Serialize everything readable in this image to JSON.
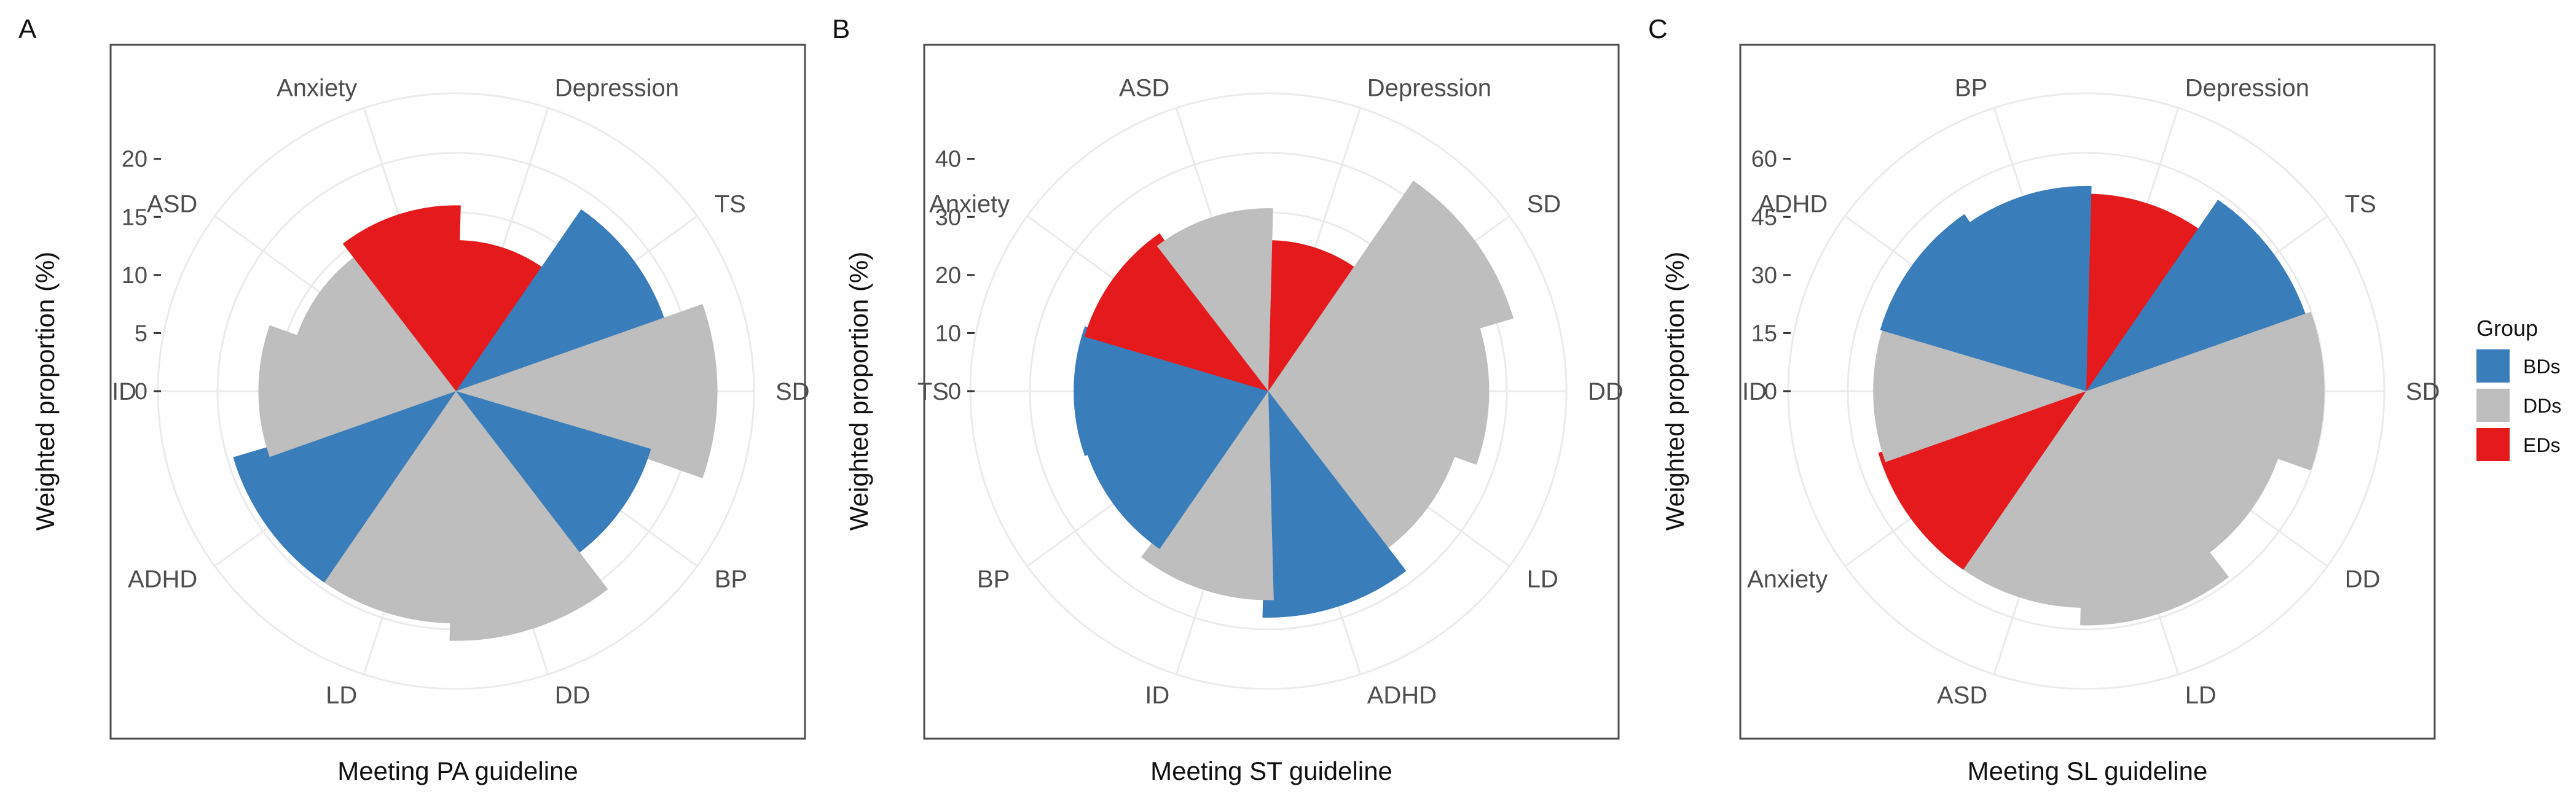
{
  "colors": {
    "BDs": "#3a7dbb",
    "DDs": "#bebebe",
    "EDs": "#e41a1c"
  },
  "legend": {
    "title": "Group",
    "items": [
      {
        "key": "BDs",
        "label": "BDs"
      },
      {
        "key": "DDs",
        "label": "DDs"
      },
      {
        "key": "EDs",
        "label": "EDs"
      }
    ]
  },
  "ylabel": "Weighted proportion (%)",
  "chart_data": [
    {
      "type": "bar",
      "coord": "polar",
      "panel": "A",
      "xlabel": "Meeting PA guideline",
      "ylabel": "Weighted proportion (%)",
      "yticks": [
        0,
        5,
        10,
        15,
        20
      ],
      "categories": [
        "Depression",
        "TS",
        "SD",
        "BP",
        "DD",
        "LD",
        "ADHD",
        "ID",
        "ASD",
        "Anxiety"
      ],
      "groups": [
        "EDs",
        "BDs",
        "DDs",
        "BDs",
        "DDs",
        "DDs",
        "BDs",
        "DDs",
        "DDs",
        "EDs"
      ],
      "values": [
        13,
        19,
        22.5,
        17.5,
        21.5,
        20,
        20,
        17,
        14.5,
        16
      ]
    },
    {
      "type": "bar",
      "coord": "polar",
      "panel": "B",
      "xlabel": "Meeting ST guideline",
      "ylabel": "Weighted proportion (%)",
      "yticks": [
        0,
        10,
        20,
        30,
        40
      ],
      "categories": [
        "Depression",
        "SD",
        "DD",
        "LD",
        "ADHD",
        "ID",
        "BP",
        "TS",
        "Anxiety",
        "ASD"
      ],
      "groups": [
        "EDs",
        "DDs",
        "DDs",
        "DDs",
        "BDs",
        "DDs",
        "BDs",
        "BDs",
        "EDs",
        "DDs"
      ],
      "values": [
        26,
        44,
        38,
        34,
        39,
        36,
        33,
        33.5,
        33,
        31.5
      ]
    },
    {
      "type": "bar",
      "coord": "polar",
      "panel": "C",
      "xlabel": "Meeting SL guideline",
      "ylabel": "Weighted proportion (%)",
      "yticks": [
        0,
        15,
        30,
        45,
        60
      ],
      "categories": [
        "Depression",
        "TS",
        "SD",
        "DD",
        "LD",
        "ASD",
        "Anxiety",
        "ID",
        "ADHD",
        "BP"
      ],
      "groups": [
        "EDs",
        "BDs",
        "DDs",
        "DDs",
        "DDs",
        "DDs",
        "EDs",
        "DDs",
        "BDs",
        "BDs"
      ],
      "values": [
        51,
        60,
        61.5,
        52.5,
        60.5,
        56,
        56,
        55,
        55.5,
        53
      ]
    }
  ]
}
